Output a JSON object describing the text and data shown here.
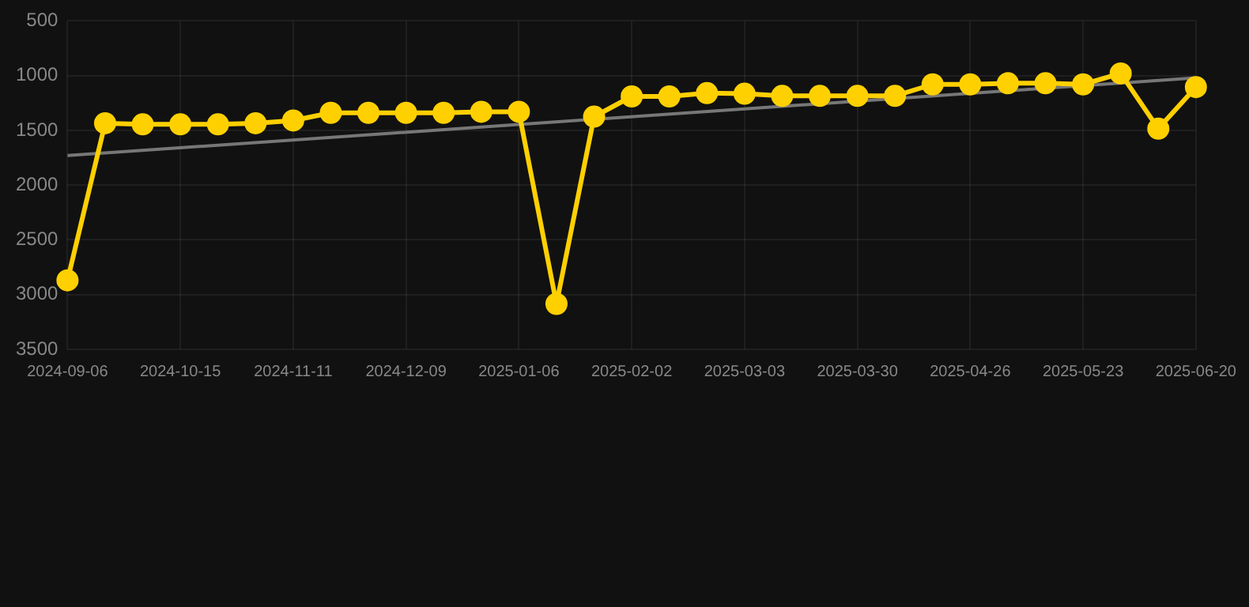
{
  "chart_data": {
    "type": "line",
    "categories": [
      "2024-09-06",
      null,
      null,
      "2024-10-15",
      null,
      null,
      "2024-11-11",
      null,
      null,
      "2024-12-09",
      null,
      null,
      "2025-01-06",
      null,
      null,
      "2025-02-02",
      null,
      null,
      "2025-03-03",
      null,
      null,
      "2025-03-30",
      null,
      null,
      "2025-04-26",
      null,
      null,
      "2025-05-23",
      null,
      null,
      "2025-06-20"
    ],
    "series": [
      {
        "color": "#ffd000",
        "marker": "circle",
        "values": [
          2870,
          1435,
          1445,
          1445,
          1445,
          1435,
          1410,
          1340,
          1340,
          1340,
          1340,
          1330,
          1330,
          3085,
          1375,
          1190,
          1190,
          1160,
          1165,
          1185,
          1185,
          1185,
          1185,
          1080,
          1080,
          1070,
          1070,
          1080,
          980,
          1485,
          1105
        ]
      },
      {
        "color": "#777777",
        "marker": "none",
        "values": [
          1730,
          null,
          null,
          null,
          null,
          null,
          null,
          null,
          null,
          null,
          null,
          null,
          null,
          null,
          null,
          null,
          null,
          null,
          null,
          null,
          null,
          null,
          null,
          null,
          null,
          null,
          null,
          null,
          null,
          null,
          1020
        ]
      }
    ],
    "ylim": [
      3500,
      500
    ],
    "yticks": [
      500,
      1000,
      1500,
      2000,
      2500,
      3000,
      3500
    ],
    "grid": true,
    "legend": false
  }
}
